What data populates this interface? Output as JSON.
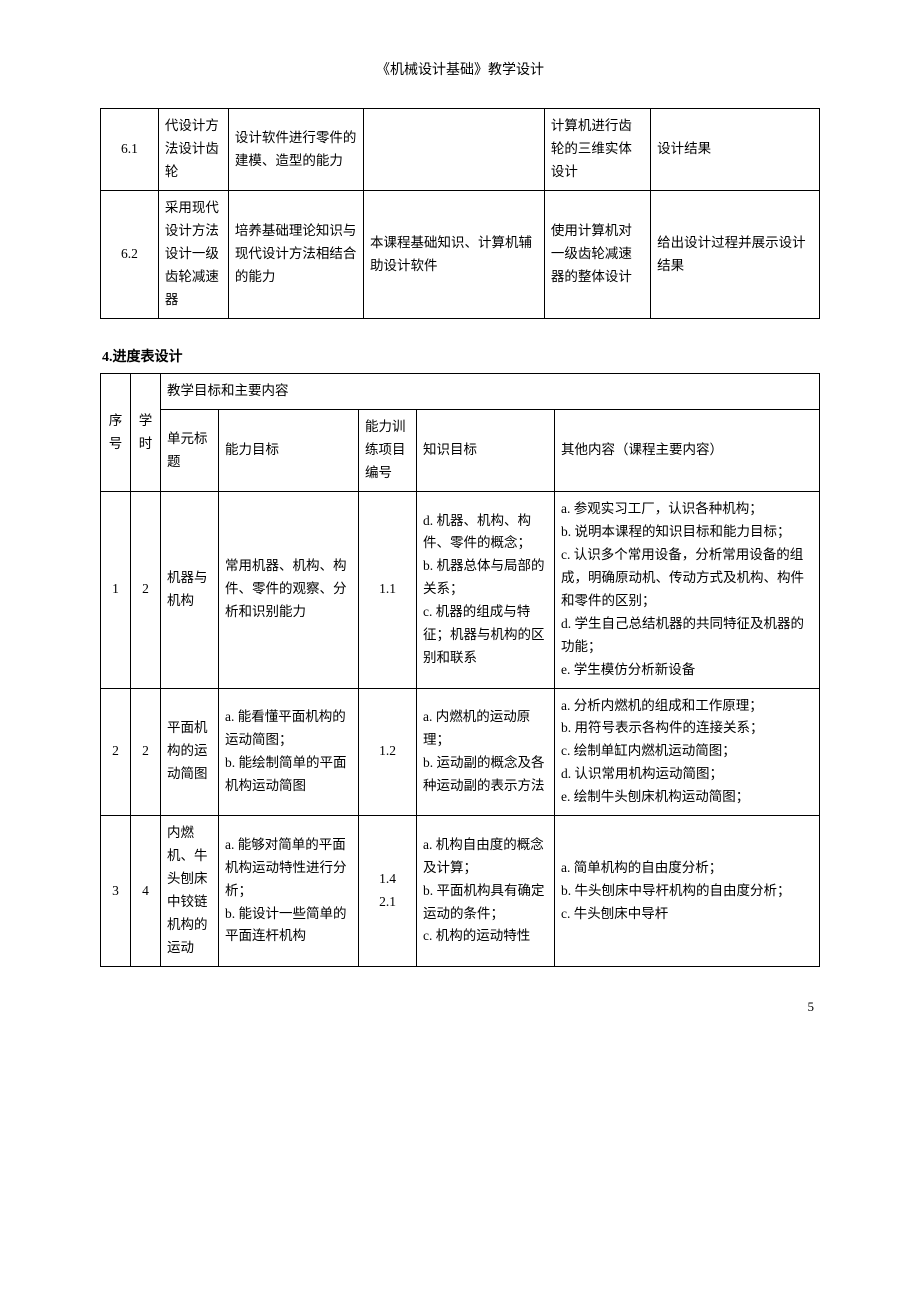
{
  "header": "《机械设计基础》教学设计",
  "page_number": "5",
  "table1": {
    "rows": [
      {
        "no": "6.1",
        "col2": "代设计方法设计齿轮",
        "col3": "设计软件进行零件的建模、造型的能力",
        "col4": "",
        "col5": "计算机进行齿轮的三维实体设计",
        "col6": "设计结果"
      },
      {
        "no": "6.2",
        "col2": "采用现代设计方法设计一级齿轮减速器",
        "col3": "培养基础理论知识与现代设计方法相结合的能力",
        "col4": "本课程基础知识、计算机辅助设计软件",
        "col5": "使用计算机对一级齿轮减速器的整体设计",
        "col6": "给出设计过程并展示设计结果"
      }
    ]
  },
  "section_title": "4.进度表设计",
  "table2": {
    "header": {
      "seq": "序号",
      "hours": "学时",
      "group": "教学目标和主要内容",
      "unit": "单元标题",
      "ability": "能力目标",
      "training": "能力训练项目编号",
      "knowledge": "知识目标",
      "other": "其他内容（课程主要内容）"
    },
    "rows": [
      {
        "seq": "1",
        "hours": "2",
        "unit": "机器与机构",
        "ability": "常用机器、机构、构件、零件的观察、分析和识别能力",
        "training": "1.1",
        "knowledge": "d. 机器、机构、构件、零件的概念；\nb. 机器总体与局部的关系；\nc. 机器的组成与特征；机器与机构的区别和联系",
        "other": "a. 参观实习工厂，认识各种机构；\nb. 说明本课程的知识目标和能力目标；\nc. 认识多个常用设备，分析常用设备的组成，明确原动机、传动方式及机构、构件和零件的区别；\nd. 学生自己总结机器的共同特征及机器的功能；\ne. 学生模仿分析新设备"
      },
      {
        "seq": "2",
        "hours": "2",
        "unit": "平面机构的运动简图",
        "ability": "a. 能看懂平面机构的运动简图；\nb. 能绘制简单的平面机构运动简图",
        "training": "1.2",
        "knowledge": "a. 内燃机的运动原理；\nb. 运动副的概念及各种运动副的表示方法",
        "other": "a. 分析内燃机的组成和工作原理；\nb. 用符号表示各构件的连接关系；\nc. 绘制单缸内燃机运动简图；\nd. 认识常用机构运动简图；\ne. 绘制牛头刨床机构运动简图；"
      },
      {
        "seq": "3",
        "hours": "4",
        "unit": "内燃机、牛头刨床中铰链机构的运动",
        "ability": "a. 能够对简单的平面机构运动特性进行分析；\nb. 能设计一些简单的平面连杆机构",
        "training": "1.4\n2.1",
        "knowledge": "a. 机构自由度的概念及计算；\nb. 平面机构具有确定运动的条件；\nc. 机构的运动特性",
        "other": "a. 简单机构的自由度分析；\nb. 牛头刨床中导杆机构的自由度分析；\nc. 牛头刨床中导杆"
      }
    ]
  }
}
